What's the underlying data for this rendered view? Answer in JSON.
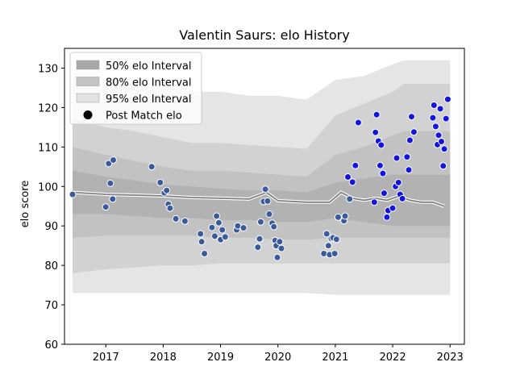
{
  "chart_data": {
    "type": "scatter",
    "title": "Valentin Saurs: elo History",
    "xlabel": "",
    "ylabel": "elo score",
    "xlim": [
      2016.28,
      2023.25
    ],
    "ylim": [
      60,
      135
    ],
    "x_ticks": [
      2017,
      2018,
      2019,
      2020,
      2021,
      2022,
      2023
    ],
    "x_tick_labels": [
      "2017",
      "2018",
      "2019",
      "2020",
      "2021",
      "2022",
      "2023"
    ],
    "y_ticks": [
      60,
      70,
      80,
      90,
      100,
      110,
      120,
      130
    ],
    "y_tick_labels": [
      "60",
      "70",
      "80",
      "90",
      "100",
      "110",
      "120",
      "130"
    ],
    "grid": false,
    "legend_position": "top-left",
    "legend": [
      {
        "label": "50% elo Interval",
        "kind": "band",
        "color": "#a8a8a8"
      },
      {
        "label": "80% elo Interval",
        "kind": "band",
        "color": "#c4c4c4"
      },
      {
        "label": "95% elo Interval",
        "kind": "band",
        "color": "#e2e2e2"
      },
      {
        "label": "Post Match elo",
        "kind": "marker",
        "color": "#000000"
      }
    ],
    "bands": {
      "x": [
        2016.42,
        2017.0,
        2017.5,
        2018.0,
        2018.5,
        2019.0,
        2019.5,
        2020.0,
        2020.5,
        2021.0,
        2021.5,
        2022.0,
        2022.2,
        2022.5,
        2023.0
      ],
      "p95_upper": [
        117,
        115,
        114,
        112.5,
        111,
        111,
        110.5,
        110,
        109.5,
        118,
        121,
        124,
        126,
        126,
        126
      ],
      "p80_upper": [
        110,
        108,
        106.5,
        105,
        104,
        104,
        103.5,
        103,
        102.5,
        108,
        110,
        113,
        114,
        114,
        114
      ],
      "p50_upper": [
        104,
        102.5,
        101.5,
        100.5,
        100,
        99.5,
        99,
        99,
        98.5,
        101,
        102,
        103,
        103,
        103,
        103
      ],
      "p50_lower": [
        93,
        93,
        92.5,
        92,
        92,
        91.5,
        91.5,
        91,
        91,
        92,
        91,
        90,
        90,
        90,
        90
      ],
      "p80_lower": [
        87,
        87.5,
        87.5,
        87.5,
        87.5,
        87,
        87,
        86.5,
        86.5,
        87,
        87,
        87,
        87,
        87,
        87
      ],
      "p95_lower": [
        78,
        79,
        79.5,
        80,
        80,
        80.5,
        80.5,
        80.5,
        80.5,
        80.5,
        80.5,
        80.5,
        80.5,
        80.5,
        80.5
      ],
      "p99_upper": [
        128,
        127,
        126,
        125,
        124,
        124,
        123,
        123,
        122,
        127,
        128,
        131,
        132,
        132,
        132
      ],
      "p99_lower": [
        73,
        73,
        73,
        73,
        73,
        73,
        73,
        73,
        73,
        72.5,
        72.5,
        72.5,
        72.5,
        72.5,
        72.5
      ]
    },
    "mean_line": {
      "x": [
        2016.42,
        2017.0,
        2017.5,
        2018.0,
        2018.5,
        2019.0,
        2019.5,
        2019.8,
        2020.0,
        2020.5,
        2020.9,
        2021.1,
        2021.3,
        2021.5,
        2021.7,
        2021.9,
        2022.1,
        2022.3,
        2022.5,
        2022.7,
        2022.9
      ],
      "y": [
        98.5,
        98,
        97.8,
        97.6,
        97.2,
        97,
        96.8,
        98.5,
        96.4,
        96,
        96,
        98.5,
        97,
        96.5,
        97,
        96.5,
        97.5,
        96.5,
        96,
        96,
        95
      ]
    },
    "series": [
      {
        "name": "",
        "color": "#3a5a9c",
        "points": [
          {
            "x": 2016.42,
            "y": 98.0
          },
          {
            "x": 2017.0,
            "y": 94.8
          },
          {
            "x": 2017.05,
            "y": 105.8
          },
          {
            "x": 2017.08,
            "y": 100.8
          },
          {
            "x": 2017.12,
            "y": 96.8
          },
          {
            "x": 2017.13,
            "y": 106.7
          },
          {
            "x": 2017.8,
            "y": 105.0
          },
          {
            "x": 2017.95,
            "y": 101.0
          },
          {
            "x": 2018.02,
            "y": 98.4
          },
          {
            "x": 2018.06,
            "y": 99.0
          },
          {
            "x": 2018.09,
            "y": 95.5
          },
          {
            "x": 2018.12,
            "y": 94.5
          },
          {
            "x": 2018.22,
            "y": 91.8
          },
          {
            "x": 2018.38,
            "y": 91.2
          },
          {
            "x": 2018.65,
            "y": 88.0
          },
          {
            "x": 2018.67,
            "y": 86.0
          },
          {
            "x": 2018.72,
            "y": 83.0
          },
          {
            "x": 2018.85,
            "y": 89.6
          },
          {
            "x": 2018.9,
            "y": 87.4
          },
          {
            "x": 2018.93,
            "y": 92.5
          },
          {
            "x": 2018.97,
            "y": 90.8
          },
          {
            "x": 2019.0,
            "y": 86.5
          },
          {
            "x": 2019.03,
            "y": 89.0
          },
          {
            "x": 2019.08,
            "y": 87.2
          },
          {
            "x": 2019.28,
            "y": 89.0
          },
          {
            "x": 2019.3,
            "y": 90.0
          },
          {
            "x": 2019.4,
            "y": 89.5
          },
          {
            "x": 2019.65,
            "y": 84.6
          },
          {
            "x": 2019.68,
            "y": 86.7
          },
          {
            "x": 2019.7,
            "y": 91.0
          },
          {
            "x": 2019.75,
            "y": 96.2
          },
          {
            "x": 2019.78,
            "y": 99.3
          },
          {
            "x": 2019.82,
            "y": 96.3
          },
          {
            "x": 2019.85,
            "y": 93.0
          },
          {
            "x": 2019.9,
            "y": 90.7
          },
          {
            "x": 2019.93,
            "y": 89.8
          },
          {
            "x": 2019.95,
            "y": 86.3
          },
          {
            "x": 2019.97,
            "y": 85.0
          },
          {
            "x": 2019.99,
            "y": 82.0
          },
          {
            "x": 2020.03,
            "y": 86.0
          },
          {
            "x": 2020.06,
            "y": 84.3
          },
          {
            "x": 2020.8,
            "y": 83.0
          },
          {
            "x": 2020.85,
            "y": 88.0
          },
          {
            "x": 2020.88,
            "y": 85.0
          },
          {
            "x": 2020.9,
            "y": 82.7
          },
          {
            "x": 2020.93,
            "y": 86.8
          },
          {
            "x": 2020.96,
            "y": 87.0
          },
          {
            "x": 2020.99,
            "y": 83.0
          },
          {
            "x": 2021.02,
            "y": 86.6
          },
          {
            "x": 2021.05,
            "y": 92.2
          },
          {
            "x": 2021.15,
            "y": 91.3
          },
          {
            "x": 2021.17,
            "y": 92.5
          },
          {
            "x": 2021.25,
            "y": 96.8
          }
        ]
      },
      {
        "name": "",
        "color": "#1414e0",
        "points": [
          {
            "x": 2021.22,
            "y": 102.4
          },
          {
            "x": 2021.3,
            "y": 101.1
          },
          {
            "x": 2021.35,
            "y": 105.3
          },
          {
            "x": 2021.4,
            "y": 116.2
          },
          {
            "x": 2021.68,
            "y": 96.0
          },
          {
            "x": 2021.7,
            "y": 113.7
          },
          {
            "x": 2021.72,
            "y": 118.2
          },
          {
            "x": 2021.75,
            "y": 111.5
          },
          {
            "x": 2021.78,
            "y": 105.3
          },
          {
            "x": 2021.8,
            "y": 110.5
          },
          {
            "x": 2021.83,
            "y": 103.3
          },
          {
            "x": 2021.85,
            "y": 98.3
          },
          {
            "x": 2021.9,
            "y": 92.2
          },
          {
            "x": 2021.92,
            "y": 93.9
          },
          {
            "x": 2022.0,
            "y": 94.5
          },
          {
            "x": 2022.05,
            "y": 100.0
          },
          {
            "x": 2022.07,
            "y": 107.2
          },
          {
            "x": 2022.1,
            "y": 101.0
          },
          {
            "x": 2022.13,
            "y": 98.0
          },
          {
            "x": 2022.17,
            "y": 96.9
          },
          {
            "x": 2022.25,
            "y": 107.5
          },
          {
            "x": 2022.28,
            "y": 104.2
          },
          {
            "x": 2022.3,
            "y": 111.7
          },
          {
            "x": 2022.33,
            "y": 117.7
          },
          {
            "x": 2022.37,
            "y": 113.8
          },
          {
            "x": 2022.7,
            "y": 117.4
          },
          {
            "x": 2022.72,
            "y": 120.6
          },
          {
            "x": 2022.75,
            "y": 115.2
          },
          {
            "x": 2022.78,
            "y": 110.6
          },
          {
            "x": 2022.8,
            "y": 113.0
          },
          {
            "x": 2022.83,
            "y": 119.7
          },
          {
            "x": 2022.85,
            "y": 111.4
          },
          {
            "x": 2022.88,
            "y": 105.2
          },
          {
            "x": 2022.9,
            "y": 109.5
          },
          {
            "x": 2022.93,
            "y": 117.2
          },
          {
            "x": 2022.96,
            "y": 122.1
          }
        ]
      }
    ]
  }
}
